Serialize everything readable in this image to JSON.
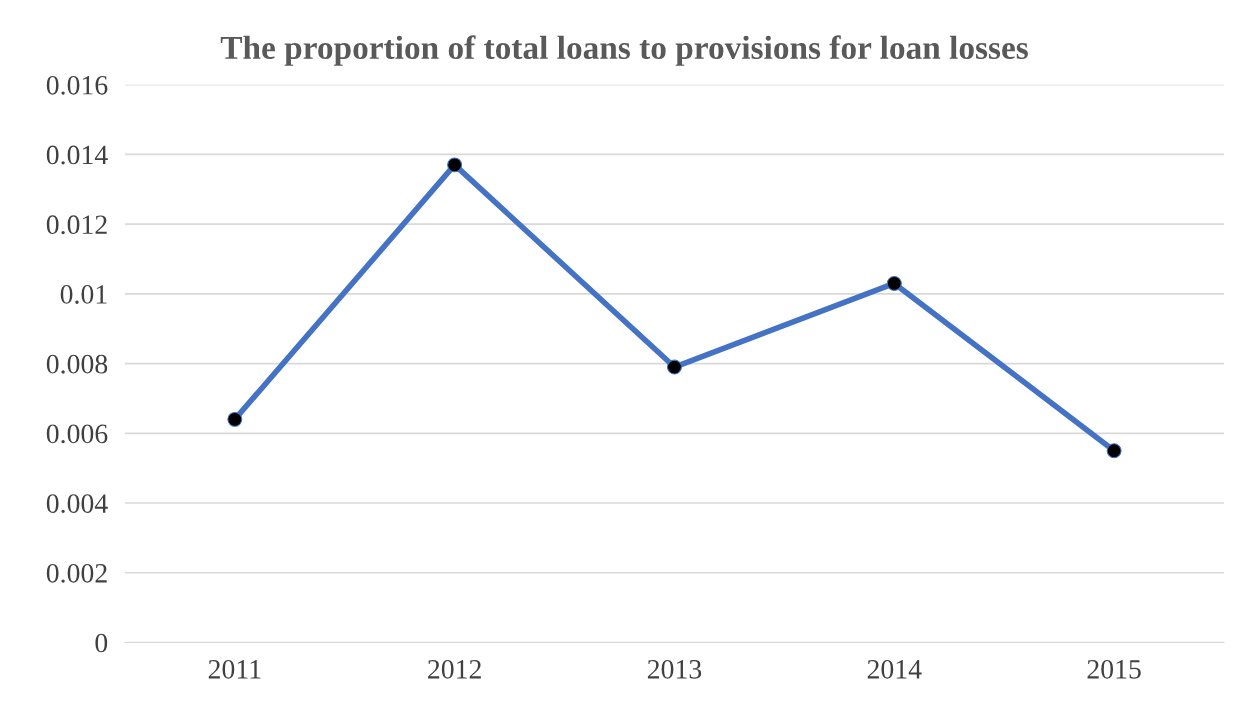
{
  "chart_data": {
    "type": "line",
    "title": "The proportion of total loans to provisions for loan losses",
    "categories": [
      "2011",
      "2012",
      "2013",
      "2014",
      "2015"
    ],
    "series": [
      {
        "color": "#4472c4",
        "values": [
          0.0064,
          0.0137,
          0.0079,
          0.0103,
          0.0055
        ]
      }
    ],
    "ylim": [
      0,
      0.016
    ],
    "yticks": [
      0,
      0.002,
      0.004,
      0.006,
      0.008,
      0.01,
      0.012,
      0.014,
      0.016
    ],
    "grid": "y",
    "marker": "circle",
    "line_style": "solid"
  }
}
